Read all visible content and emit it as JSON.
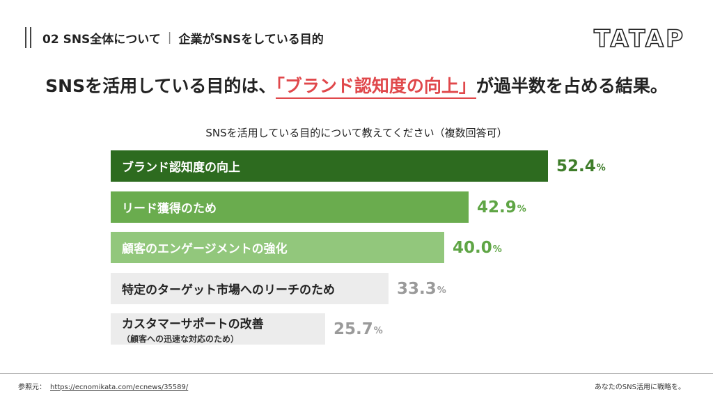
{
  "header": {
    "section": "02 SNS全体について",
    "separator": "|",
    "subsection": "企業がSNSをしている目的"
  },
  "logo": "TATAP",
  "headline": {
    "before": "SNSを活用している目的は、",
    "highlight": "「ブランド認知度の向上」",
    "after": "が過半数を占める結果。"
  },
  "chart_data": {
    "type": "bar",
    "orientation": "horizontal",
    "title": "SNSを活用している目的について教えてください（複数回答可）",
    "unit": "%",
    "categories": [
      "ブランド認知度の向上",
      "リード獲得のため",
      "顧客のエンゲージメントの強化",
      "特定のターゲット市場へのリーチのため",
      "カスタマーサポートの改善"
    ],
    "subtitles": [
      "",
      "",
      "",
      "",
      "（顧客への迅速な対応のため）"
    ],
    "values": [
      52.4,
      42.9,
      40.0,
      33.3,
      25.7
    ],
    "value_labels": [
      "52.4",
      "42.9",
      "40.0",
      "33.3",
      "25.7"
    ],
    "bar_colors": [
      "#2d6b1f",
      "#6aac4e",
      "#92c77c",
      "#ececec",
      "#ececec"
    ],
    "text_colors": [
      "#ffffff",
      "#ffffff",
      "#ffffff",
      "#222222",
      "#222222"
    ],
    "value_colors": [
      "#3f7d2a",
      "#5fa545",
      "#5fa545",
      "#9a9a9a",
      "#9a9a9a"
    ]
  },
  "footer": {
    "source_label": "参照元：",
    "source_url": "https://ecnomikata.com/ecnews/35589/",
    "tagline": "あなたのSNS活用に戦略を。"
  }
}
